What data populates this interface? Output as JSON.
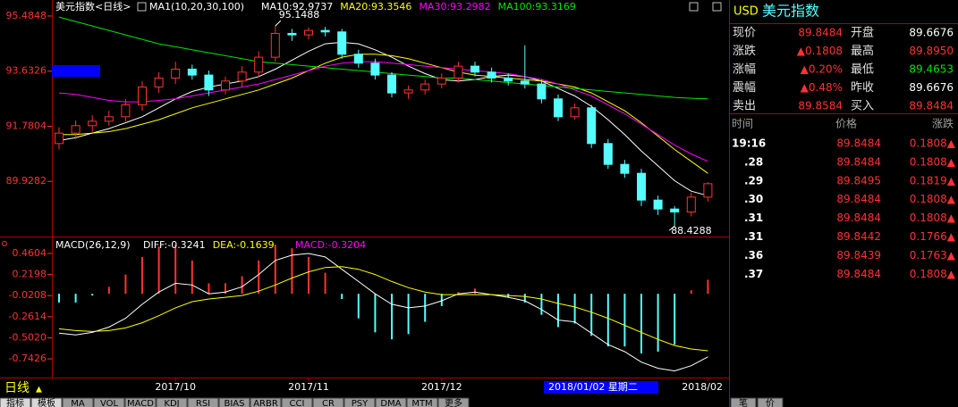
{
  "chart_data": [
    {
      "type": "candlestick",
      "title": "美元指数<日线>",
      "indicator_label": "MA1(10,20,30,100)",
      "categories": [
        null,
        null,
        null,
        null,
        null,
        null,
        null,
        "2017/10",
        null,
        null,
        null,
        null,
        null,
        null,
        null,
        "2017/11",
        null,
        null,
        null,
        null,
        null,
        null,
        null,
        "2017/12",
        null,
        null,
        null,
        null,
        null,
        null,
        null,
        null,
        null,
        null,
        null,
        null,
        null,
        null,
        null,
        "2018/02"
      ],
      "open": [
        91.2,
        91.55,
        91.8,
        91.95,
        92.1,
        92.5,
        93.1,
        93.4,
        93.7,
        93.5,
        93.0,
        93.3,
        93.6,
        94.1,
        94.9,
        94.85,
        95.0,
        94.95,
        94.2,
        93.9,
        93.5,
        92.9,
        93.0,
        93.2,
        93.4,
        93.8,
        93.6,
        93.4,
        93.3,
        93.2,
        92.7,
        92.1,
        92.4,
        91.2,
        90.5,
        90.2,
        89.3,
        89.0,
        88.9,
        89.4
      ],
      "high": [
        91.75,
        91.98,
        92.15,
        92.3,
        92.7,
        93.3,
        93.6,
        93.95,
        93.85,
        93.65,
        93.45,
        93.8,
        94.3,
        95.1488,
        95.05,
        95.1,
        95.12,
        95.05,
        94.35,
        94.05,
        93.6,
        93.15,
        93.35,
        93.55,
        93.95,
        93.95,
        93.75,
        93.55,
        94.5,
        93.35,
        92.85,
        92.55,
        92.5,
        91.35,
        90.65,
        90.35,
        89.45,
        89.1,
        89.55,
        89.9
      ],
      "low": [
        91.0,
        91.35,
        91.6,
        91.8,
        91.95,
        92.3,
        92.9,
        93.2,
        93.35,
        92.8,
        92.85,
        93.1,
        93.45,
        93.95,
        94.65,
        94.7,
        94.8,
        94.05,
        93.75,
        93.35,
        92.75,
        92.7,
        92.85,
        93.05,
        93.25,
        93.45,
        93.25,
        93.15,
        93.05,
        92.55,
        91.95,
        92.0,
        91.05,
        90.35,
        90.05,
        89.1,
        88.8,
        88.4288,
        88.75,
        89.25
      ],
      "close": [
        91.55,
        91.8,
        91.95,
        92.1,
        92.5,
        93.1,
        93.4,
        93.7,
        93.5,
        93.0,
        93.3,
        93.6,
        94.1,
        94.9,
        94.85,
        95.0,
        94.95,
        94.2,
        93.9,
        93.5,
        92.9,
        93.0,
        93.2,
        93.4,
        93.8,
        93.6,
        93.4,
        93.3,
        93.2,
        92.7,
        92.1,
        92.4,
        91.2,
        90.5,
        90.2,
        89.3,
        89.0,
        88.9,
        89.4,
        89.85
      ],
      "up_color": "#ff3232",
      "down_color": "#54ffff",
      "series": [
        {
          "name": "MA10:92.9737",
          "color": "#ffffff",
          "values": [
            91.3,
            91.4,
            91.55,
            91.7,
            91.9,
            92.1,
            92.4,
            92.7,
            92.95,
            93.1,
            93.2,
            93.3,
            93.45,
            93.7,
            94.0,
            94.3,
            94.55,
            94.6,
            94.55,
            94.35,
            94.1,
            93.8,
            93.55,
            93.35,
            93.3,
            93.35,
            93.45,
            93.5,
            93.45,
            93.3,
            93.05,
            92.8,
            92.45,
            92.0,
            91.5,
            90.95,
            90.45,
            89.95,
            89.6,
            89.45
          ]
        },
        {
          "name": "MA20:93.3546",
          "color": "#ffff00",
          "values": [
            91.5,
            91.5,
            91.55,
            91.6,
            91.7,
            91.85,
            92.0,
            92.2,
            92.4,
            92.55,
            92.7,
            92.85,
            93.0,
            93.2,
            93.4,
            93.65,
            93.9,
            94.1,
            94.2,
            94.2,
            94.15,
            94.05,
            93.9,
            93.75,
            93.6,
            93.5,
            93.45,
            93.4,
            93.35,
            93.3,
            93.2,
            93.1,
            92.9,
            92.6,
            92.3,
            91.9,
            91.45,
            91.0,
            90.6,
            90.2
          ]
        },
        {
          "name": "MA30:93.2982",
          "color": "#ff00ff",
          "values": [
            92.9,
            92.85,
            92.75,
            92.65,
            92.6,
            92.6,
            92.65,
            92.7,
            92.8,
            92.9,
            93.0,
            93.1,
            93.2,
            93.35,
            93.5,
            93.65,
            93.8,
            93.9,
            93.95,
            93.95,
            93.9,
            93.85,
            93.8,
            93.75,
            93.7,
            93.65,
            93.6,
            93.55,
            93.45,
            93.35,
            93.2,
            93.0,
            92.8,
            92.5,
            92.2,
            91.85,
            91.5,
            91.15,
            90.85,
            90.6
          ]
        },
        {
          "name": "MA100:93.3169",
          "color": "#00e600",
          "values": [
            95.45,
            95.3,
            95.15,
            95.0,
            94.85,
            94.7,
            94.55,
            94.45,
            94.35,
            94.25,
            94.15,
            94.05,
            93.95,
            93.9,
            93.85,
            93.8,
            93.75,
            93.7,
            93.65,
            93.6,
            93.55,
            93.5,
            93.45,
            93.4,
            93.4,
            93.35,
            93.3,
            93.25,
            93.2,
            93.15,
            93.1,
            93.05,
            93.0,
            92.95,
            92.9,
            92.85,
            92.8,
            92.75,
            92.72,
            92.7
          ]
        }
      ],
      "ylim": [
        88.076,
        96.0225
      ],
      "yticks": [
        95.4848,
        93.6326,
        91.7804,
        89.9282
      ],
      "max_label": 95.1488,
      "min_label": 88.4288,
      "cursor_label": "2018/01/02 星期二"
    },
    {
      "type": "macd",
      "title": "MACD(26,12,9)",
      "macd_label": "MACD:-0.3204",
      "values": [
        -0.1,
        -0.1,
        -0.02,
        0.08,
        0.22,
        0.42,
        0.54,
        0.56,
        0.38,
        0.12,
        0.12,
        0.2,
        0.38,
        0.56,
        0.52,
        0.42,
        0.24,
        -0.06,
        -0.28,
        -0.44,
        -0.52,
        -0.46,
        -0.32,
        -0.14,
        0.02,
        0.06,
        0.0,
        -0.04,
        -0.1,
        -0.24,
        -0.38,
        -0.34,
        -0.48,
        -0.6,
        -0.6,
        -0.68,
        -0.66,
        -0.58,
        0.04,
        0.16
      ],
      "up_color": "#ff3232",
      "down_color": "#54ffff",
      "series": [
        {
          "name": "DIFF:-0.3241",
          "color": "#ffffff",
          "values": [
            -0.45,
            -0.47,
            -0.44,
            -0.38,
            -0.28,
            -0.12,
            0.02,
            0.12,
            0.1,
            0.0,
            0.02,
            0.08,
            0.22,
            0.38,
            0.44,
            0.46,
            0.42,
            0.28,
            0.14,
            0.0,
            -0.12,
            -0.16,
            -0.14,
            -0.08,
            0.0,
            0.02,
            -0.01,
            -0.04,
            -0.08,
            -0.18,
            -0.3,
            -0.32,
            -0.45,
            -0.58,
            -0.66,
            -0.78,
            -0.85,
            -0.88,
            -0.82,
            -0.72
          ]
        },
        {
          "name": "DEA:-0.1639",
          "color": "#ffff00",
          "values": [
            -0.4,
            -0.42,
            -0.43,
            -0.42,
            -0.39,
            -0.33,
            -0.25,
            -0.16,
            -0.09,
            -0.06,
            -0.04,
            -0.02,
            0.03,
            0.1,
            0.18,
            0.25,
            0.3,
            0.31,
            0.28,
            0.22,
            0.14,
            0.07,
            0.02,
            -0.01,
            -0.01,
            -0.01,
            -0.01,
            -0.02,
            -0.03,
            -0.06,
            -0.11,
            -0.15,
            -0.21,
            -0.28,
            -0.36,
            -0.44,
            -0.52,
            -0.59,
            -0.63,
            -0.65
          ]
        }
      ],
      "ylim": [
        -0.9456,
        0.6228
      ],
      "yticks": [
        0.4604,
        0.2198,
        -0.0208,
        -0.2614,
        {
          "value": -0.502,
          "label": "-0.5020"
        },
        -0.7426
      ]
    }
  ],
  "quote": {
    "symbol": "USD",
    "name": "美元指数",
    "rows": [
      [
        "现价",
        "89.8484",
        "开盘",
        "89.6676"
      ],
      [
        "涨跌",
        "▲0.1808",
        "最高",
        "89.8950"
      ],
      [
        "涨幅",
        "▲0.20%",
        "最低",
        "89.4653"
      ],
      [
        "震幅",
        "▲0.48%",
        "昨收",
        "89.6676"
      ],
      [
        "卖出",
        "89.8584",
        "买入",
        "89.8484"
      ]
    ],
    "ticks_header": [
      "时间",
      "价格",
      "涨跌"
    ],
    "ticks": [
      [
        "19:16",
        "89.8484",
        "0.1808▲"
      ],
      [
        ".28",
        "89.8484",
        "0.1808▲"
      ],
      [
        ".29",
        "89.8495",
        "0.1819▲"
      ],
      [
        ".30",
        "89.8484",
        "0.1808▲"
      ],
      [
        ".31",
        "89.8484",
        "0.1808▲"
      ],
      [
        ".31",
        "89.8442",
        "0.1766▲"
      ],
      [
        ".36",
        "89.8439",
        "0.1763▲"
      ],
      [
        ".37",
        "89.8484",
        "0.1808▲"
      ]
    ]
  },
  "footer": {
    "period": "日线",
    "tabs": [
      "指标",
      "模板",
      "MA",
      "VOL",
      "MACD",
      "KDJ",
      "RSI",
      "BIAS",
      "ARBR",
      "CCI",
      "CR",
      "PSY",
      "DMA",
      "MTM",
      "更多"
    ],
    "right_tabs": [
      "笔",
      "价"
    ]
  }
}
